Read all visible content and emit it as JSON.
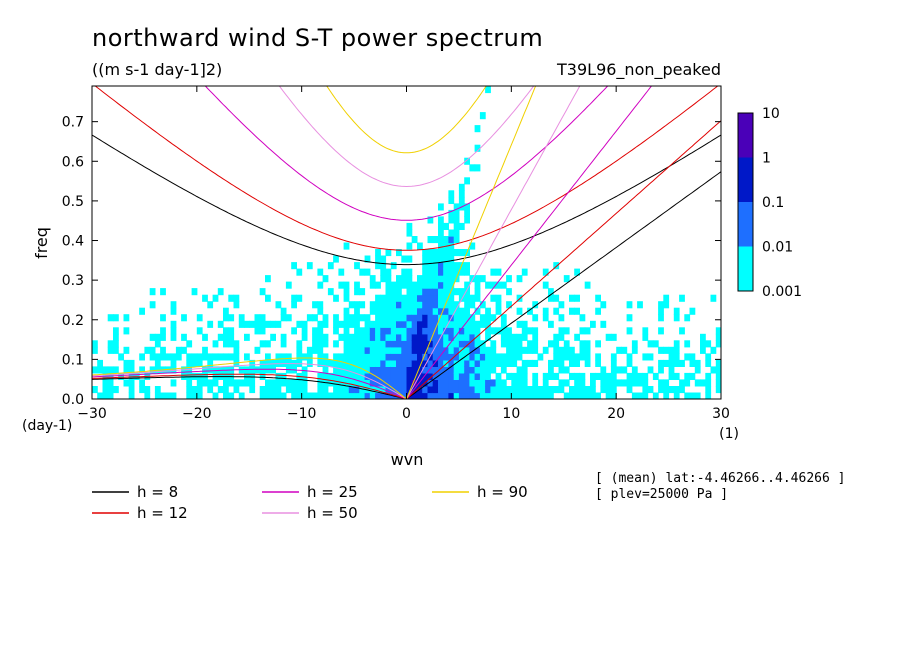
{
  "chart_data": {
    "type": "heatmap",
    "title": "northward wind S-T power spectrum",
    "units": "((m s-1 day-1]2)",
    "run": "T39L96_non_peaked",
    "xlabel": "wvn",
    "ylabel": "freq",
    "x_unit": "(1)",
    "y_unit": "(day-1)",
    "xlim": [
      -30,
      30
    ],
    "ylim": [
      0,
      0.79
    ],
    "x_ticks": [
      "-30",
      "-20",
      "-10",
      "0",
      "10",
      "20",
      "30"
    ],
    "y_ticks": [
      "0.0",
      "0.1",
      "0.2",
      "0.3",
      "0.4",
      "0.5",
      "0.6",
      "0.7"
    ],
    "colorbar": {
      "labels": [
        "10",
        "1",
        "0.1",
        "0.01",
        "0.001"
      ],
      "levels": [
        0.001,
        0.01,
        0.1,
        1,
        10
      ],
      "colors": [
        "#00ffff",
        "#1e6fff",
        "#0018c8",
        "#4a00b8"
      ]
    },
    "notes": [
      "[ (mean) lat:-4.46266..4.46266 ]",
      "[ plev=25000 Pa ]"
    ],
    "dispersion_curves": [
      {
        "label": "h =  8",
        "h": 8,
        "color": "#000000"
      },
      {
        "label": "h = 12",
        "h": 12,
        "color": "#e00000"
      },
      {
        "label": "h = 25",
        "h": 25,
        "color": "#d000c0"
      },
      {
        "label": "h = 50",
        "h": 50,
        "color": "#e890e0"
      },
      {
        "label": "h = 90",
        "h": 90,
        "color": "#f0d000"
      }
    ]
  }
}
